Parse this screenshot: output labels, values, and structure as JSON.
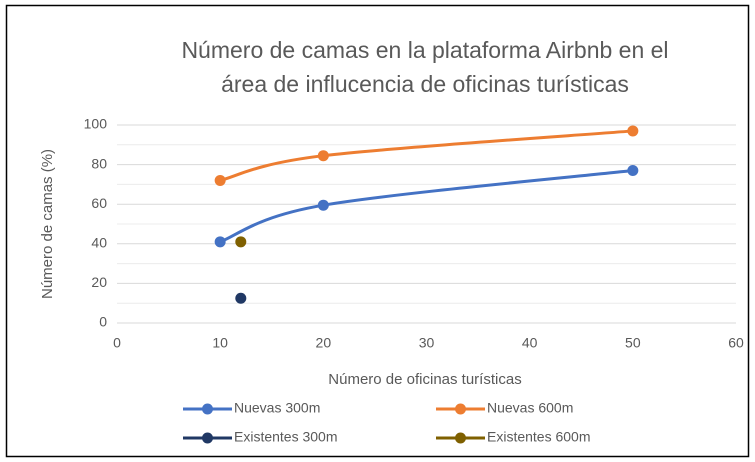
{
  "chart_data": {
    "type": "scatter",
    "title": [
      "Número de camas en la plataforma Airbnb en el",
      "área de influcencia de oficinas turísticas"
    ],
    "x_label": "Número de oficinas turísticas",
    "y_label": "Número de camas (%)",
    "xlim": [
      0,
      60
    ],
    "xticks": [
      0,
      10,
      20,
      30,
      40,
      50,
      60
    ],
    "ylim": [
      0,
      100
    ],
    "yticks": [
      0,
      20,
      40,
      60,
      80,
      100
    ],
    "minor_yticks": [
      10,
      30,
      50,
      70,
      90
    ],
    "grid": true,
    "smooth": true,
    "legend": "bottom",
    "series": [
      {
        "name": "Nuevas 300m",
        "color": "#4472c4",
        "x": [
          10,
          20,
          50
        ],
        "values": [
          41,
          59.5,
          77
        ]
      },
      {
        "name": "Nuevas 600m",
        "color": "#ed7d31",
        "x": [
          10,
          20,
          50
        ],
        "values": [
          72,
          84.5,
          97
        ]
      },
      {
        "name": "Existentes 300m",
        "color": "#203864",
        "x": [
          12
        ],
        "values": [
          12.5
        ]
      },
      {
        "name": "Existentes 600m",
        "color": "#7f6000",
        "x": [
          12
        ],
        "values": [
          41
        ]
      }
    ]
  }
}
